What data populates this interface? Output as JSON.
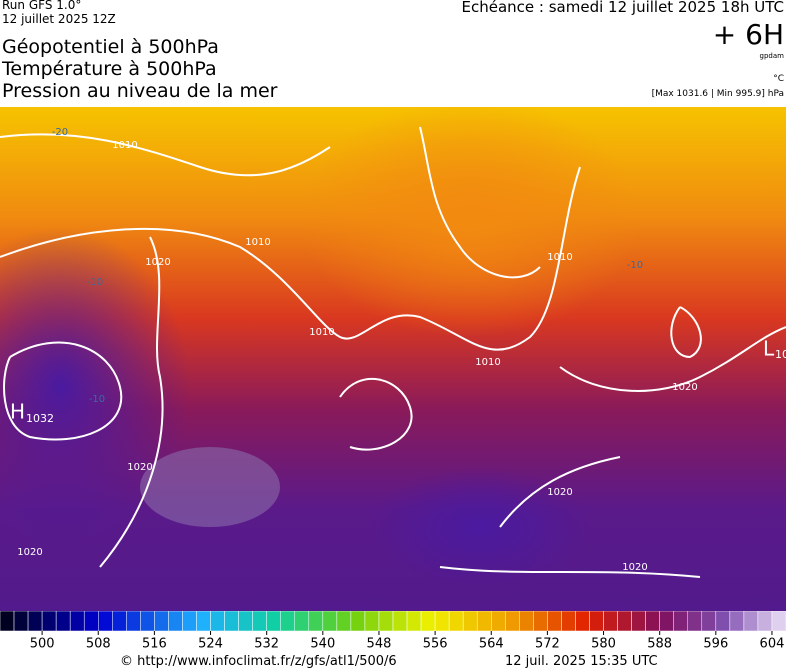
{
  "header": {
    "run": "Run GFS 1.0°",
    "run_date": "12 juillet 2025 12Z",
    "title_lines": [
      "Géopotentiel à 500hPa",
      "Température à 500hPa",
      "Pression au niveau de la mer"
    ],
    "valid": "Echéance : samedi 12 juillet 2025 18h UTC",
    "lead": "+ 6H",
    "unit_geo": "gpdam",
    "unit_temp": "°C",
    "pressure_range": "[Max 1031.6 | Min 995.9] hPa"
  },
  "map_labels": {
    "isobars": [
      "1010",
      "1010",
      "1020",
      "1010",
      "1010",
      "1010",
      "1020",
      "1020",
      "1020",
      "1020",
      "1020"
    ],
    "temperature": [
      "-20",
      "-10",
      "-10",
      "-10"
    ],
    "high": {
      "letter": "H",
      "value": "1032"
    },
    "low": {
      "letter": "L",
      "value": "10"
    }
  },
  "colorbar": {
    "lim": [
      494,
      606
    ],
    "ticks": [
      500,
      508,
      516,
      524,
      532,
      540,
      548,
      556,
      564,
      572,
      580,
      588,
      596,
      604
    ]
  },
  "footer": {
    "url": "© http://www.infoclimat.fr/z/gfs/atl1/500/6",
    "timestamp": "12 juil. 2025 15:35 UTC"
  }
}
